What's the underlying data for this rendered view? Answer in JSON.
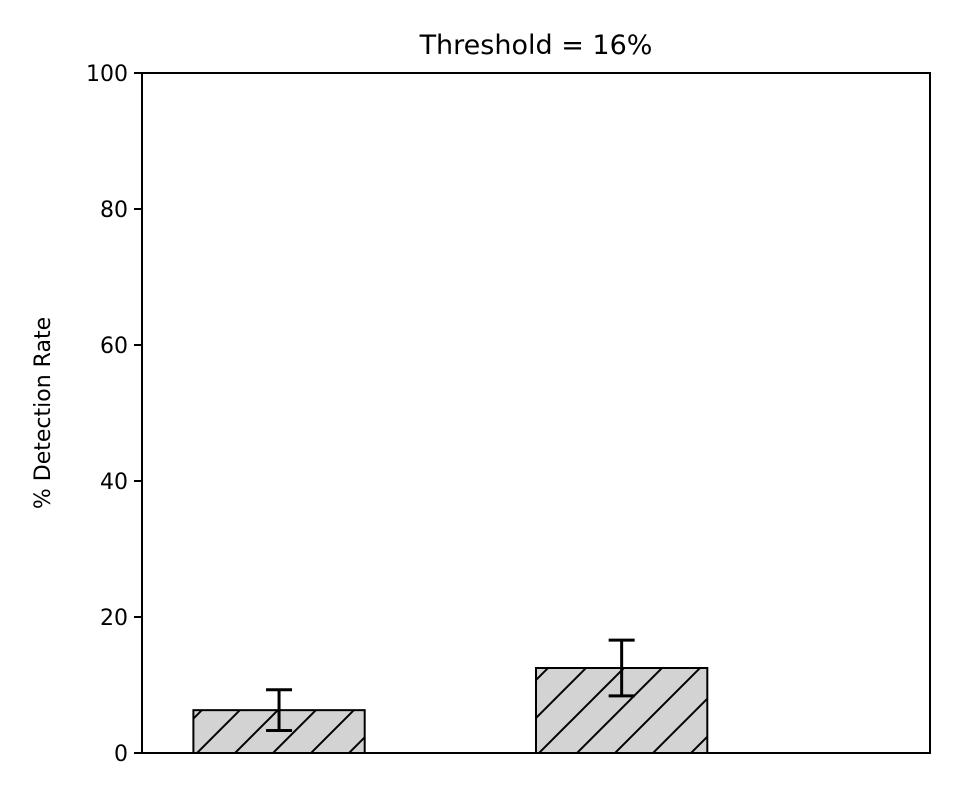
{
  "chart_data": {
    "type": "bar",
    "title": "Threshold = 16%",
    "xlabel": "",
    "ylabel": "% Detection Rate",
    "ylim": [
      0,
      100
    ],
    "yticks": [
      0,
      20,
      40,
      60,
      80,
      100
    ],
    "grid": false,
    "categories": [
      "",
      ""
    ],
    "values": [
      6.3,
      12.5
    ],
    "error": [
      3.0,
      4.1
    ],
    "bar_color": "#d3d3d3",
    "edge_color": "#000000",
    "hatch": "diagonal"
  }
}
